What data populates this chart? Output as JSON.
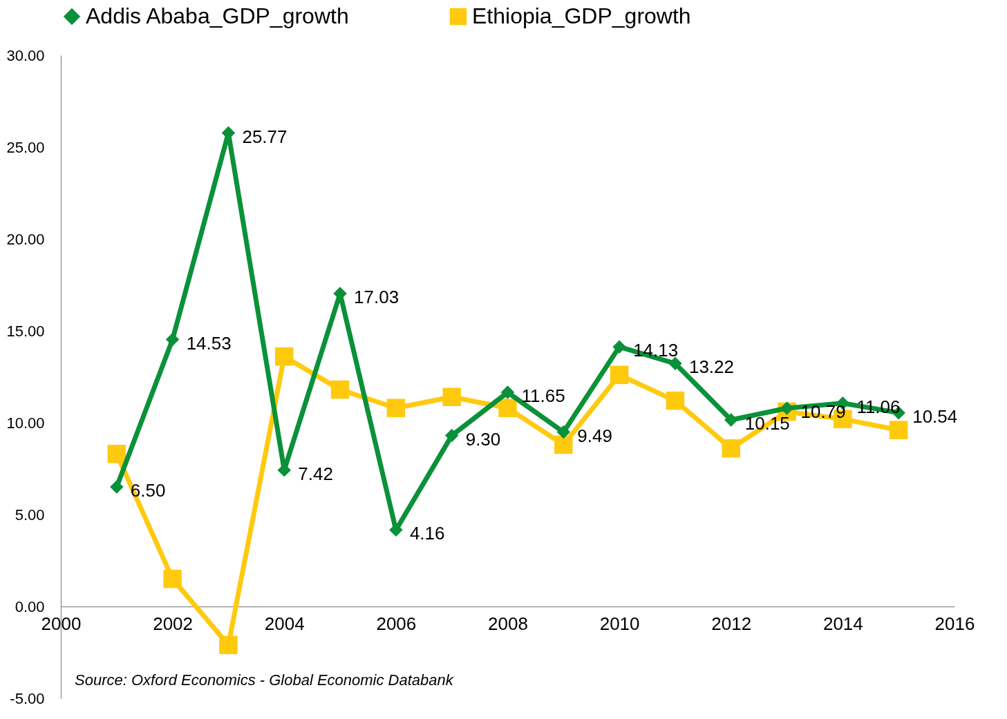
{
  "chart_data": {
    "type": "line",
    "x": [
      2001,
      2002,
      2003,
      2004,
      2005,
      2006,
      2007,
      2008,
      2009,
      2010,
      2011,
      2012,
      2013,
      2014,
      2015
    ],
    "series": [
      {
        "name": "Addis Ababa_GDP_growth",
        "color": "#0a9139",
        "marker": "diamond",
        "values": [
          6.5,
          14.53,
          25.77,
          7.42,
          17.03,
          4.16,
          9.3,
          11.65,
          9.49,
          14.13,
          13.22,
          10.15,
          10.79,
          11.06,
          10.54
        ],
        "value_labels": [
          "6.50",
          "14.53",
          "25.77",
          "7.42",
          "17.03",
          "4.16",
          "9.30",
          "11.65",
          "9.49",
          "14.13",
          "13.22",
          "10.15",
          "10.79",
          "11.06",
          "10.54"
        ]
      },
      {
        "name": "Ethiopia_GDP_growth",
        "color": "#ffc90e",
        "marker": "square",
        "values": [
          8.3,
          1.5,
          -2.1,
          13.6,
          11.8,
          10.8,
          11.4,
          10.8,
          8.8,
          12.6,
          11.2,
          8.6,
          10.6,
          10.2,
          9.6
        ]
      }
    ],
    "xlim": [
      2000,
      2016
    ],
    "xticks": [
      2000,
      2002,
      2004,
      2006,
      2008,
      2010,
      2012,
      2014,
      2016
    ],
    "ylim": [
      -5,
      30
    ],
    "yticks": [
      {
        "value": -5,
        "label": "-5.00"
      },
      {
        "value": 0,
        "label": "0.00"
      },
      {
        "value": 5,
        "label": "5.00"
      },
      {
        "value": 10,
        "label": "10.00"
      },
      {
        "value": 15,
        "label": "15.00"
      },
      {
        "value": 20,
        "label": "20.00"
      },
      {
        "value": 25,
        "label": "25.00"
      },
      {
        "value": 30,
        "label": "30.00"
      }
    ],
    "grid": false,
    "legend": "top",
    "line_style": "solid",
    "annotations": [
      "Source: Oxford Economics - Global Economic Databank"
    ]
  }
}
